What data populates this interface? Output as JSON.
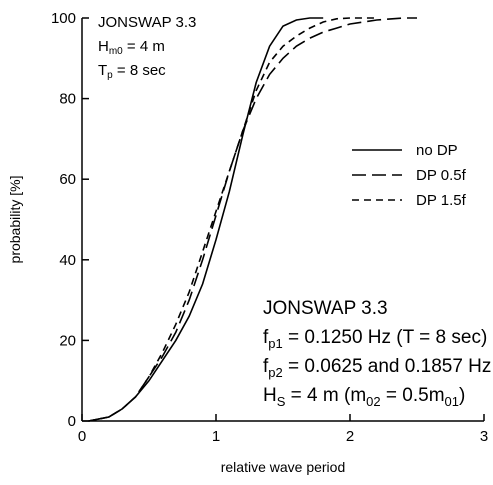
{
  "chart_data": {
    "type": "line",
    "xlabel": "relative wave period",
    "ylabel": "probability [%]",
    "xlim": [
      0,
      3
    ],
    "ylim": [
      0,
      100
    ],
    "x_ticks": [
      0,
      1,
      2,
      3
    ],
    "y_ticks": [
      0,
      20,
      40,
      60,
      80,
      100
    ],
    "grid": false,
    "legend_position": "right",
    "top_left_text": {
      "line1": "JONSWAP 3.3",
      "line2_main": "H",
      "line2_sub": "m0",
      "line2_rest": " = 4 m",
      "line3_main": "T",
      "line3_sub": "p",
      "line3_rest": " = 8 sec"
    },
    "annotation": {
      "title": "JONSWAP 3.3",
      "fp1_main": "f",
      "fp1_sub": "p1",
      "fp1_rest": " =  0.1250 Hz (T = 8 sec)",
      "fp2_main": "f",
      "fp2_sub": "p2",
      "fp2_rest": " =  0.0625 and 0.1857 Hz",
      "hs_main": "H",
      "hs_sub": "S",
      "hs_mid": " = 4 m (m",
      "hs_sub2": "02",
      "hs_mid2": " = 0.5m",
      "hs_sub3": "01",
      "hs_end": ")"
    },
    "series": [
      {
        "name": "no DP",
        "dash": "solid",
        "x": [
          0.05,
          0.2,
          0.3,
          0.4,
          0.5,
          0.6,
          0.7,
          0.8,
          0.9,
          1.0,
          1.1,
          1.2,
          1.3,
          1.4,
          1.5,
          1.6,
          1.7,
          1.8
        ],
        "y": [
          0,
          1,
          3,
          6,
          10,
          15,
          20,
          26,
          34,
          45,
          57,
          71,
          84,
          93,
          98,
          99.5,
          100,
          100
        ]
      },
      {
        "name": "DP 0.5f",
        "dash": "long",
        "x": [
          0.05,
          0.2,
          0.3,
          0.4,
          0.5,
          0.6,
          0.7,
          0.8,
          0.9,
          1.0,
          1.1,
          1.2,
          1.3,
          1.4,
          1.5,
          1.6,
          1.7,
          1.8,
          1.9,
          2.0,
          2.2,
          2.4,
          2.5
        ],
        "y": [
          0,
          1,
          3,
          6,
          11,
          16,
          22,
          30,
          40,
          51,
          62,
          72,
          80,
          86,
          90,
          93,
          95,
          96.5,
          97.5,
          98.5,
          99.5,
          100,
          100
        ]
      },
      {
        "name": "DP 1.5f",
        "dash": "short",
        "x": [
          0.05,
          0.2,
          0.3,
          0.4,
          0.5,
          0.6,
          0.7,
          0.8,
          0.9,
          1.0,
          1.1,
          1.2,
          1.3,
          1.4,
          1.5,
          1.6,
          1.7,
          1.8,
          1.9,
          2.0,
          2.2
        ],
        "y": [
          0,
          1,
          3,
          6,
          11,
          17,
          24,
          32,
          42,
          52,
          62,
          72,
          82,
          89,
          93,
          95.5,
          97.5,
          99,
          99.8,
          100,
          100
        ]
      }
    ]
  }
}
